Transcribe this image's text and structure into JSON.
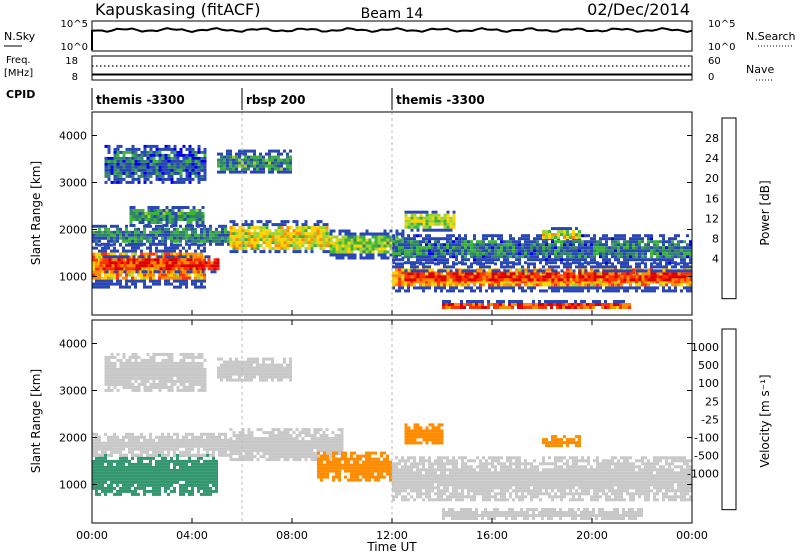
{
  "header": {
    "radar": "Kapuskasing (fitACF)",
    "beam": "Beam 14",
    "date": "02/Dec/2014"
  },
  "noise_panel": {
    "left_label": "N.Sky",
    "right_label": "N.Search",
    "left_ticks": [
      "10^5",
      "10^0"
    ],
    "right_ticks": [
      "10^5",
      "10^0"
    ]
  },
  "freq_panel": {
    "left_label_1": "Freq.",
    "left_label_2": "[MHz]",
    "right_label": "Nave",
    "left_ticks": [
      "18",
      "8"
    ],
    "right_ticks": [
      "60",
      "0"
    ],
    "freq_mhz": 10.3,
    "nave": 35
  },
  "cpid": {
    "label": "CPID",
    "segments": [
      {
        "start_h": 0,
        "end_h": 6,
        "name": "themis -3300"
      },
      {
        "start_h": 6,
        "end_h": 12,
        "name": "rbsp 200"
      },
      {
        "start_h": 12,
        "end_h": 24,
        "name": "themis -3300"
      }
    ]
  },
  "colors": {
    "power": [
      "#0000f0",
      "#2846b4",
      "#32826e",
      "#3cb43c",
      "#a0d232",
      "#ffd200",
      "#ff8c00",
      "#ff3200",
      "#dc0000"
    ],
    "velocity": [
      "#dc0000",
      "#ff3200",
      "#ff8c00",
      "#f0b400",
      "#c8c8c8",
      "#c8c8c8",
      "#78c83c",
      "#32966e",
      "#2846b4",
      "#0000dc"
    ]
  },
  "chart_data": [
    {
      "type": "heatmap",
      "title": "Power",
      "ylabel": "Slant Range [km]",
      "xlabel": "",
      "xlim": [
        0,
        24
      ],
      "ylim": [
        180,
        4500
      ],
      "yticks": [
        "1000",
        "2000",
        "3000",
        "4000"
      ],
      "colorbar_label": "Power [dB]",
      "colorbar_ticks": [
        "28",
        "24",
        "20",
        "16",
        "12",
        "8",
        "4"
      ],
      "colorbar_range": [
        0,
        32
      ],
      "regions": [
        {
          "t0": 0.0,
          "t1": 4.5,
          "r0": 800,
          "r1": 1700,
          "value": 22
        },
        {
          "t0": 0.3,
          "t1": 5.0,
          "r0": 1100,
          "r1": 1450,
          "value": 28
        },
        {
          "t0": 0.0,
          "t1": 5.5,
          "r0": 1700,
          "r1": 2100,
          "value": 9
        },
        {
          "t0": 5.5,
          "t1": 9.5,
          "r0": 1500,
          "r1": 2200,
          "value": 18
        },
        {
          "t0": 9.5,
          "t1": 12.5,
          "r0": 1400,
          "r1": 2000,
          "value": 14
        },
        {
          "t0": 12.0,
          "t1": 24.0,
          "r0": 700,
          "r1": 1300,
          "value": 22
        },
        {
          "t0": 12.5,
          "t1": 24.0,
          "r0": 900,
          "r1": 1150,
          "value": 28
        },
        {
          "t0": 12.0,
          "t1": 24.0,
          "r0": 1300,
          "r1": 1900,
          "value": 8
        },
        {
          "t0": 14.0,
          "t1": 21.5,
          "r0": 320,
          "r1": 500,
          "value": 26
        },
        {
          "t0": 0.5,
          "t1": 4.5,
          "r0": 3000,
          "r1": 3800,
          "value": 7
        },
        {
          "t0": 5.0,
          "t1": 8.0,
          "r0": 3200,
          "r1": 3700,
          "value": 10
        },
        {
          "t0": 1.5,
          "t1": 4.5,
          "r0": 2100,
          "r1": 2500,
          "value": 10
        },
        {
          "t0": 12.5,
          "t1": 14.5,
          "r0": 2000,
          "r1": 2400,
          "value": 16
        },
        {
          "t0": 18.0,
          "t1": 19.5,
          "r0": 1800,
          "r1": 2050,
          "value": 18
        }
      ]
    },
    {
      "type": "heatmap",
      "title": "Velocity",
      "ylabel": "Slant Range [km]",
      "xlabel": "Time UT",
      "xlim": [
        0,
        24
      ],
      "ylim": [
        180,
        4500
      ],
      "xticks": [
        "00:00",
        "04:00",
        "08:00",
        "12:00",
        "16:00",
        "20:00",
        "00:00"
      ],
      "yticks": [
        "1000",
        "2000",
        "3000",
        "4000"
      ],
      "colorbar_label": "Velocity [m s⁻¹]",
      "colorbar_ticks": [
        "1000",
        "500",
        "100",
        "25",
        "-25",
        "-100",
        "-500",
        "-1000"
      ],
      "regions": [
        {
          "t0": 0.0,
          "t1": 5.0,
          "r0": 800,
          "r1": 1650,
          "value": 300
        },
        {
          "t0": 0.0,
          "t1": 5.5,
          "r0": 1650,
          "r1": 2100,
          "value": 0
        },
        {
          "t0": 5.5,
          "t1": 10.0,
          "r0": 1500,
          "r1": 2200,
          "value": 0
        },
        {
          "t0": 9.0,
          "t1": 12.0,
          "r0": 1100,
          "r1": 1700,
          "value": -300
        },
        {
          "t0": 12.0,
          "t1": 24.0,
          "r0": 700,
          "r1": 1600,
          "value": 0
        },
        {
          "t0": 14.0,
          "t1": 22.0,
          "r0": 300,
          "r1": 500,
          "value": 0
        },
        {
          "t0": 12.5,
          "t1": 14.0,
          "r0": 1900,
          "r1": 2300,
          "value": -300
        },
        {
          "t0": 18.0,
          "t1": 19.5,
          "r0": 1800,
          "r1": 2050,
          "value": -300
        },
        {
          "t0": 0.5,
          "t1": 4.5,
          "r0": 3000,
          "r1": 3800,
          "value": 0
        },
        {
          "t0": 5.0,
          "t1": 8.0,
          "r0": 3200,
          "r1": 3700,
          "value": 0
        }
      ]
    }
  ]
}
